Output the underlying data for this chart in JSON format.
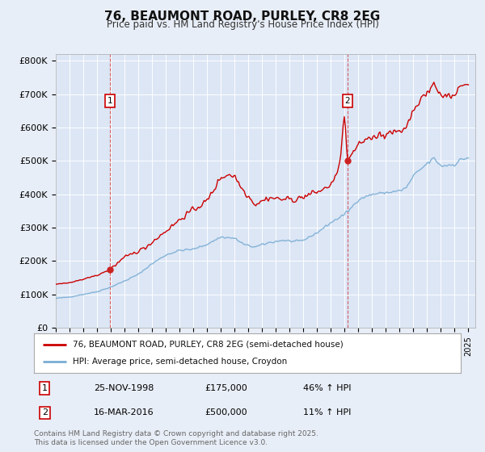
{
  "title": "76, BEAUMONT ROAD, PURLEY, CR8 2EG",
  "subtitle": "Price paid vs. HM Land Registry's House Price Index (HPI)",
  "background_color": "#e8eef7",
  "plot_bg_color": "#dce6f5",
  "grid_color": "#ffffff",
  "ylim": [
    0,
    820000
  ],
  "yticks": [
    0,
    100000,
    200000,
    300000,
    400000,
    500000,
    600000,
    700000,
    800000
  ],
  "ytick_labels": [
    "£0",
    "£100K",
    "£200K",
    "£300K",
    "£400K",
    "£500K",
    "£600K",
    "£700K",
    "£800K"
  ],
  "x_start_year": 1995,
  "x_end_year": 2025,
  "sale1_year": 1998.917,
  "sale1_price": 175000,
  "sale1_date": "25-NOV-1998",
  "sale1_hpi_pct": "46% ↑ HPI",
  "sale2_year": 2016.208,
  "sale2_price": 500000,
  "sale2_date": "16-MAR-2016",
  "sale2_hpi_pct": "11% ↑ HPI",
  "line_color_property": "#cc0000",
  "line_color_hpi": "#7aadd4",
  "marker_color_property": "#cc0000",
  "footer_text": "Contains HM Land Registry data © Crown copyright and database right 2025.\nThis data is licensed under the Open Government Licence v3.0.",
  "legend_label_property": "76, BEAUMONT ROAD, PURLEY, CR8 2EG (semi-detached house)",
  "legend_label_hpi": "HPI: Average price, semi-detached house, Croydon"
}
